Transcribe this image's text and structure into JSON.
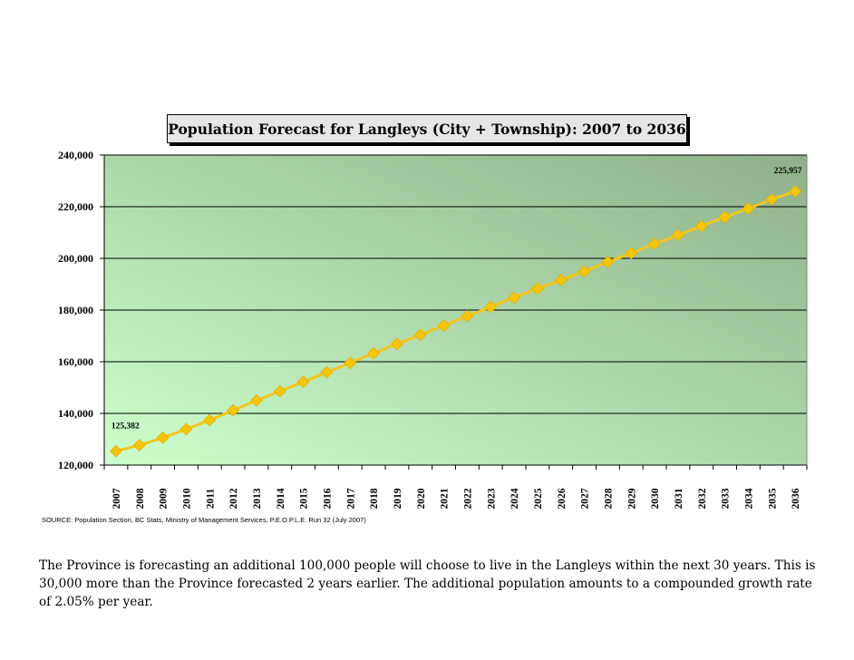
{
  "chart_data": {
    "type": "line",
    "title": "Population Forecast for Langleys (City + Township):  2007 to 2036",
    "xlabel": "",
    "ylabel": "",
    "ylim": [
      120000,
      240000
    ],
    "y_ticks": [
      "120,000",
      "140,000",
      "160,000",
      "180,000",
      "200,000",
      "220,000",
      "240,000"
    ],
    "y_tick_values": [
      120000,
      140000,
      160000,
      180000,
      200000,
      220000,
      240000
    ],
    "categories": [
      "2007",
      "2008",
      "2009",
      "2010",
      "2011",
      "2012",
      "2013",
      "2014",
      "2015",
      "2016",
      "2017",
      "2018",
      "2019",
      "2020",
      "2021",
      "2022",
      "2023",
      "2024",
      "2025",
      "2026",
      "2027",
      "2028",
      "2029",
      "2030",
      "2031",
      "2032",
      "2033",
      "2034",
      "2035",
      "2036"
    ],
    "series": [
      {
        "values": [
          125382,
          127700,
          130600,
          133900,
          137400,
          141200,
          145000,
          148600,
          152200,
          155900,
          159600,
          163300,
          166900,
          170400,
          174000,
          177700,
          181200,
          184800,
          188300,
          191600,
          195000,
          198600,
          202000,
          205600,
          209000,
          212500,
          216000,
          219300,
          222800,
          225957
        ]
      }
    ],
    "data_labels": [
      {
        "index": 0,
        "text": "125,382"
      },
      {
        "index": 29,
        "text": "225,957"
      }
    ],
    "grid": true,
    "legend": "none",
    "colors": {
      "line": "#f4c51a",
      "marker": "#f7c600",
      "plot_gradient_start": "#ccffcc",
      "plot_gradient_end": "#8fb08a",
      "gridline": "#000000"
    }
  },
  "source": "SOURCE:  Population Section, BC Stats, Ministry of Management Services, P.E.O.P.L.E. Run 32 (July 2007)",
  "note": "The Province is forecasting an additional 100,000 people will choose to live in the Langleys within the next 30 years.  This is 30,000 more than the Province forecasted 2 years earlier.  The additional population amounts to a compounded growth rate of 2.05% per year."
}
